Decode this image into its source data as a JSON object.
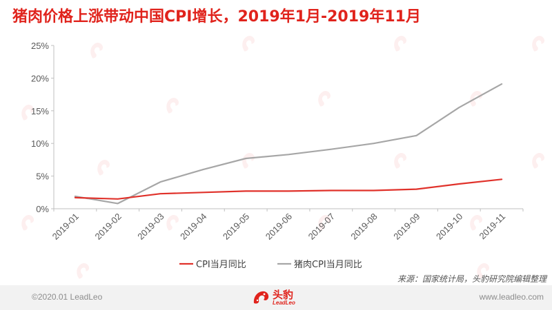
{
  "header": {
    "title": "猪肉价格上涨带动中国CPI增长，2019年1月-2019年11月"
  },
  "source": "来源：国家统计局，头豹研究院编辑整理",
  "footer": {
    "copyright": "©2020.01 LeadLeo",
    "website": "www.leadleo.com",
    "logo_cn": "头豹",
    "logo_en": "LeadLeo"
  },
  "colors": {
    "title": "#e0231c",
    "series_cpi": "#e0312a",
    "series_pork": "#a6a6a6",
    "axis": "#bfbfbf"
  },
  "chart_data": {
    "type": "line",
    "x": [
      "2019-01",
      "2019-02",
      "2019-03",
      "2019-04",
      "2019-05",
      "2019-06",
      "2019-07",
      "2019-08",
      "2019-09",
      "2019-10",
      "2019-11"
    ],
    "ylim": [
      0,
      25
    ],
    "yticks": [
      "0%",
      "5%",
      "10%",
      "15%",
      "20%",
      "25%"
    ],
    "grid": false,
    "legend_position": "bottom",
    "series": [
      {
        "name": "CPI当月同比",
        "color": "#e0312a",
        "values": [
          1.7,
          1.5,
          2.3,
          2.5,
          2.7,
          2.7,
          2.8,
          2.8,
          3.0,
          3.8,
          4.5
        ]
      },
      {
        "name": "猪肉CPI当月同比",
        "color": "#a6a6a6",
        "values": [
          1.9,
          0.8,
          4.1,
          6.0,
          7.7,
          8.3,
          9.1,
          10.0,
          11.2,
          15.5,
          19.1
        ]
      }
    ]
  }
}
